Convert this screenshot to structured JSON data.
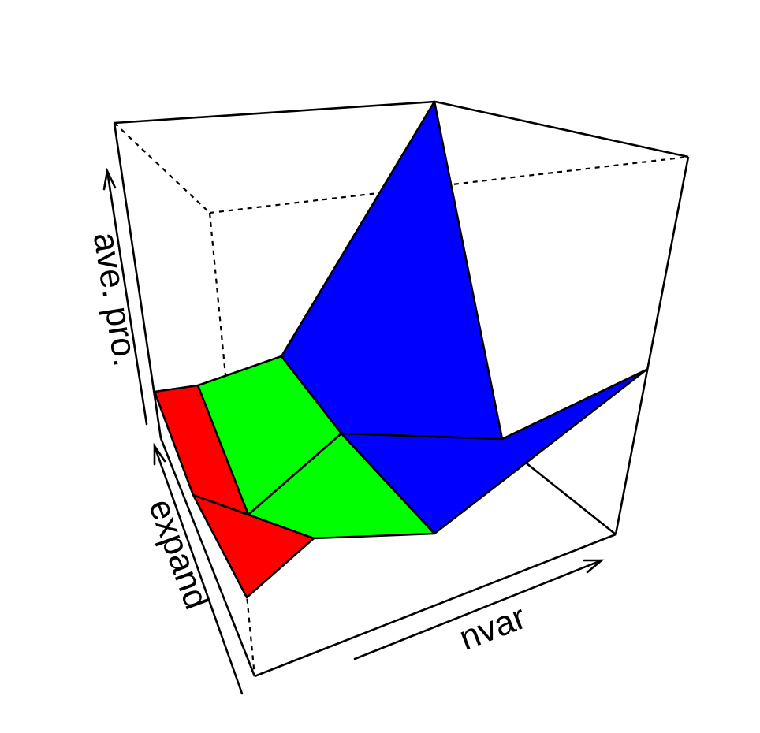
{
  "chart_data": {
    "type": "surface",
    "title": "",
    "axes": {
      "x": "nvar",
      "y": "expand",
      "z": "ave. pro."
    },
    "ticks": "none",
    "box": true,
    "colors": {
      "low": "#ff0000",
      "mid": "#00ff00",
      "high": "#0000ff",
      "edge": "#000000",
      "background": "#ffffff"
    }
  }
}
